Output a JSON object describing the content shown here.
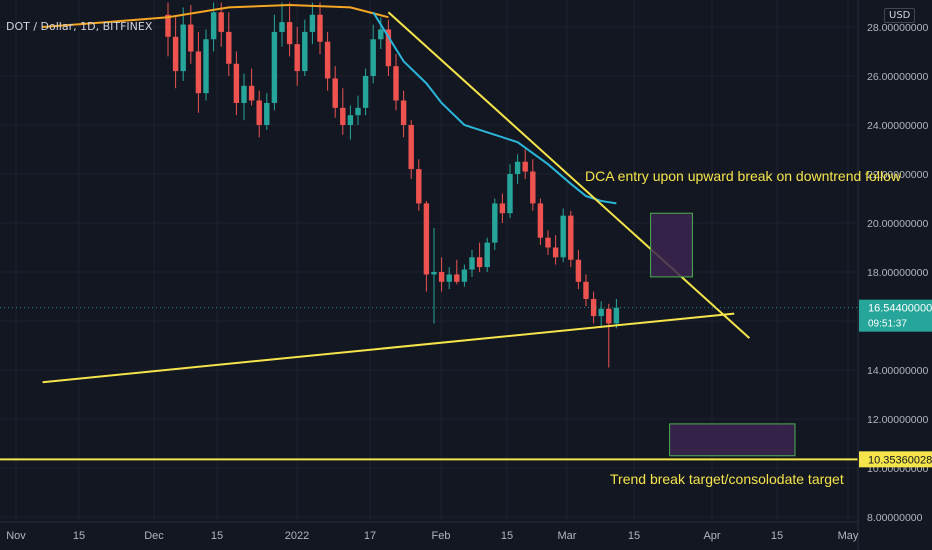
{
  "header": {
    "symbol_text": "DOT / Dollar, 1D, BITFINEX",
    "currency": "USD"
  },
  "price_badge": {
    "price": "16.54400000",
    "countdown": "09:51:37"
  },
  "target_badge": {
    "price": "10.35360028"
  },
  "annotations": {
    "dca": "DCA entry upon upward break on downtrend follow",
    "target": "Trend break target/consolodate target"
  },
  "colors": {
    "background": "#131722",
    "up": "#26a69a",
    "down": "#ef5350",
    "trendline": "#f5e44a",
    "ma_orange": "#f5a623",
    "ma_cyan": "#2bb5d9",
    "box_fill": "#3b2450",
    "box_stroke": "#4caf50"
  },
  "chart_data": {
    "type": "candlestick",
    "title": "DOT / Dollar, 1D, BITFINEX",
    "y_axis": {
      "range": [
        8,
        28.6
      ],
      "tick_labels": [
        "28.00000000",
        "26.00000000",
        "24.00000000",
        "22.00000000",
        "20.00000000",
        "18.00000000",
        "16.00000000",
        "14.00000000",
        "12.00000000",
        "10.00000000",
        "8.00000000"
      ]
    },
    "x_axis": {
      "tick_labels": [
        "Nov",
        "15",
        "Dec",
        "15",
        "2022",
        "17",
        "Feb",
        "15",
        "Mar",
        "15",
        "Apr",
        "15",
        "May"
      ]
    },
    "last_price": 16.544,
    "horizontal_level": 10.3536,
    "candles": [
      {
        "o": 28.5,
        "h": 29.0,
        "l": 26.8,
        "c": 27.6
      },
      {
        "o": 27.6,
        "h": 28.4,
        "l": 25.5,
        "c": 26.2
      },
      {
        "o": 26.2,
        "h": 28.8,
        "l": 25.8,
        "c": 28.1
      },
      {
        "o": 28.1,
        "h": 28.9,
        "l": 26.5,
        "c": 27.0
      },
      {
        "o": 27.0,
        "h": 27.8,
        "l": 24.5,
        "c": 25.3
      },
      {
        "o": 25.3,
        "h": 27.9,
        "l": 25.0,
        "c": 27.5
      },
      {
        "o": 27.5,
        "h": 29.0,
        "l": 27.0,
        "c": 28.6
      },
      {
        "o": 28.6,
        "h": 29.0,
        "l": 27.2,
        "c": 27.8
      },
      {
        "o": 27.8,
        "h": 28.6,
        "l": 26.0,
        "c": 26.5
      },
      {
        "o": 26.5,
        "h": 27.0,
        "l": 24.4,
        "c": 24.9
      },
      {
        "o": 24.9,
        "h": 26.1,
        "l": 24.2,
        "c": 25.6
      },
      {
        "o": 25.6,
        "h": 26.3,
        "l": 24.8,
        "c": 25.0
      },
      {
        "o": 25.0,
        "h": 25.4,
        "l": 23.5,
        "c": 24.0
      },
      {
        "o": 24.0,
        "h": 25.3,
        "l": 23.8,
        "c": 24.9
      },
      {
        "o": 24.9,
        "h": 28.5,
        "l": 24.6,
        "c": 27.8
      },
      {
        "o": 27.8,
        "h": 29.0,
        "l": 27.2,
        "c": 28.2
      },
      {
        "o": 28.2,
        "h": 29.0,
        "l": 26.8,
        "c": 27.3
      },
      {
        "o": 27.3,
        "h": 28.0,
        "l": 25.6,
        "c": 26.2
      },
      {
        "o": 26.2,
        "h": 28.3,
        "l": 26.0,
        "c": 27.8
      },
      {
        "o": 27.8,
        "h": 29.0,
        "l": 27.3,
        "c": 28.5
      },
      {
        "o": 28.5,
        "h": 29.0,
        "l": 26.9,
        "c": 27.4
      },
      {
        "o": 27.4,
        "h": 27.8,
        "l": 25.4,
        "c": 25.9
      },
      {
        "o": 25.9,
        "h": 26.4,
        "l": 24.3,
        "c": 24.7
      },
      {
        "o": 24.7,
        "h": 25.5,
        "l": 23.6,
        "c": 24.0
      },
      {
        "o": 24.0,
        "h": 24.8,
        "l": 23.4,
        "c": 24.4
      },
      {
        "o": 24.4,
        "h": 25.2,
        "l": 24.0,
        "c": 24.7
      },
      {
        "o": 24.7,
        "h": 26.3,
        "l": 24.4,
        "c": 26.0
      },
      {
        "o": 26.0,
        "h": 28.1,
        "l": 25.7,
        "c": 27.5
      },
      {
        "o": 27.5,
        "h": 28.4,
        "l": 27.1,
        "c": 27.9
      },
      {
        "o": 27.9,
        "h": 28.3,
        "l": 26.0,
        "c": 26.4
      },
      {
        "o": 26.4,
        "h": 26.9,
        "l": 24.6,
        "c": 25.0
      },
      {
        "o": 25.0,
        "h": 25.4,
        "l": 23.5,
        "c": 24.0
      },
      {
        "o": 24.0,
        "h": 24.2,
        "l": 21.8,
        "c": 22.2
      },
      {
        "o": 22.2,
        "h": 22.6,
        "l": 20.5,
        "c": 20.8
      },
      {
        "o": 20.8,
        "h": 20.9,
        "l": 17.2,
        "c": 17.9
      },
      {
        "o": 17.9,
        "h": 19.8,
        "l": 15.9,
        "c": 18.0
      },
      {
        "o": 18.0,
        "h": 18.6,
        "l": 17.2,
        "c": 17.6
      },
      {
        "o": 17.6,
        "h": 18.2,
        "l": 17.3,
        "c": 17.9
      },
      {
        "o": 17.9,
        "h": 18.5,
        "l": 17.5,
        "c": 17.6
      },
      {
        "o": 17.6,
        "h": 18.3,
        "l": 17.4,
        "c": 18.1
      },
      {
        "o": 18.1,
        "h": 18.9,
        "l": 17.8,
        "c": 18.6
      },
      {
        "o": 18.6,
        "h": 19.2,
        "l": 18.0,
        "c": 18.2
      },
      {
        "o": 18.2,
        "h": 19.4,
        "l": 18.0,
        "c": 19.2
      },
      {
        "o": 19.2,
        "h": 21.0,
        "l": 18.9,
        "c": 20.8
      },
      {
        "o": 20.8,
        "h": 21.2,
        "l": 20.0,
        "c": 20.4
      },
      {
        "o": 20.4,
        "h": 22.4,
        "l": 20.2,
        "c": 22.0
      },
      {
        "o": 22.0,
        "h": 22.8,
        "l": 21.6,
        "c": 22.5
      },
      {
        "o": 22.5,
        "h": 23.0,
        "l": 21.8,
        "c": 22.1
      },
      {
        "o": 22.1,
        "h": 22.6,
        "l": 20.5,
        "c": 20.8
      },
      {
        "o": 20.8,
        "h": 21.0,
        "l": 19.1,
        "c": 19.4
      },
      {
        "o": 19.4,
        "h": 19.7,
        "l": 18.7,
        "c": 19.0
      },
      {
        "o": 19.0,
        "h": 19.5,
        "l": 18.3,
        "c": 18.6
      },
      {
        "o": 18.6,
        "h": 20.6,
        "l": 18.4,
        "c": 20.3
      },
      {
        "o": 20.3,
        "h": 20.5,
        "l": 18.2,
        "c": 18.5
      },
      {
        "o": 18.5,
        "h": 18.9,
        "l": 17.3,
        "c": 17.6
      },
      {
        "o": 17.6,
        "h": 17.9,
        "l": 16.6,
        "c": 16.9
      },
      {
        "o": 16.9,
        "h": 17.2,
        "l": 15.9,
        "c": 16.2
      },
      {
        "o": 16.2,
        "h": 16.8,
        "l": 15.8,
        "c": 16.5
      },
      {
        "o": 16.5,
        "h": 16.7,
        "l": 14.1,
        "c": 15.9
      },
      {
        "o": 15.9,
        "h": 16.9,
        "l": 15.7,
        "c": 16.544
      }
    ],
    "trendlines": [
      {
        "name": "downtrend",
        "from": {
          "bar": 29,
          "y": 28.6
        },
        "to": {
          "bar": 76.5,
          "y": 15.3
        }
      },
      {
        "name": "uptrend support",
        "from": {
          "bar": -16.5,
          "y": 13.5
        },
        "to": {
          "bar": 74.5,
          "y": 16.3
        }
      }
    ],
    "moving_averages": [
      {
        "color": "orange",
        "points": [
          [
            -16.5,
            28.0
          ],
          [
            -8,
            28.2
          ],
          [
            0,
            28.4
          ],
          [
            8,
            28.8
          ],
          [
            16,
            28.9
          ],
          [
            24,
            28.8
          ],
          [
            29,
            28.4
          ]
        ]
      },
      {
        "color": "cyan",
        "points": [
          [
            27,
            28.6
          ],
          [
            29,
            27.6
          ],
          [
            31,
            26.6
          ],
          [
            34,
            25.7
          ],
          [
            36,
            24.9
          ],
          [
            39,
            24.0
          ],
          [
            42,
            23.7
          ],
          [
            46,
            23.3
          ],
          [
            50,
            22.4
          ],
          [
            53,
            21.6
          ],
          [
            55,
            21.1
          ],
          [
            57,
            20.9
          ],
          [
            59,
            20.8
          ]
        ]
      }
    ],
    "boxes": [
      {
        "name": "dca-entry-zone",
        "bar_from": 63.5,
        "bar_to": 69,
        "y_from": 17.8,
        "y_to": 20.4
      },
      {
        "name": "target-zone",
        "bar_from": 66,
        "bar_to": 82.5,
        "y_from": 10.5,
        "y_to": 11.8
      }
    ]
  }
}
